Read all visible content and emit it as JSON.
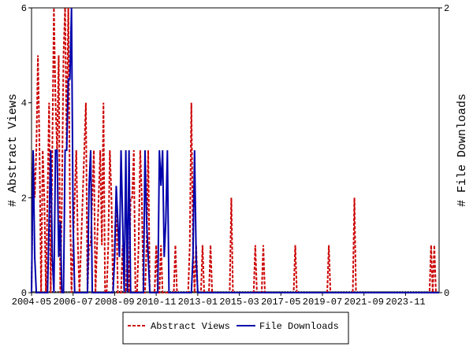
{
  "chart_data": {
    "type": "line",
    "y_label": "# Abstract Views",
    "y2_label": "# File Downloads",
    "categories": [
      "2004-05",
      null,
      null,
      null,
      null,
      null,
      null,
      null,
      null,
      null,
      null,
      null,
      null,
      null,
      null,
      null,
      null,
      null,
      null,
      null,
      null,
      null,
      null,
      null,
      null,
      null,
      "2006-07",
      null,
      null,
      null,
      null,
      null,
      null,
      null,
      null,
      null,
      null,
      null,
      null,
      null,
      null,
      null,
      null,
      null,
      null,
      null,
      null,
      null,
      null,
      null,
      null,
      null,
      "2008-09",
      null,
      null,
      null,
      null,
      null,
      null,
      null,
      null,
      null,
      null,
      null,
      null,
      null,
      null,
      null,
      null,
      null,
      null,
      null,
      null,
      null,
      null,
      null,
      null,
      null,
      "2010-11",
      null,
      null,
      null,
      null,
      null,
      null,
      null,
      null,
      null,
      null,
      null,
      null,
      null,
      null,
      null,
      null,
      null,
      null,
      null,
      null,
      null,
      null,
      null,
      null,
      null,
      "2013-01",
      null,
      null,
      null,
      null,
      null,
      null,
      null,
      null,
      null,
      null,
      null,
      null,
      null,
      null,
      null,
      null,
      null,
      null,
      null,
      null,
      null,
      null,
      null,
      null,
      null,
      "2015-03",
      null,
      null,
      null,
      null,
      null,
      null,
      null,
      null,
      null,
      null,
      null,
      null,
      null,
      null,
      null,
      null,
      null,
      null,
      null,
      null,
      null,
      null,
      null,
      null,
      null,
      "2017-05",
      null,
      null,
      null,
      null,
      null,
      null,
      null,
      null,
      null,
      null,
      null,
      null,
      null,
      null,
      null,
      null,
      null,
      null,
      null,
      null,
      null,
      null,
      null,
      null,
      null,
      "2019-07",
      null,
      null,
      null,
      null,
      null,
      null,
      null,
      null,
      null,
      null,
      null,
      null,
      null,
      null,
      null,
      null,
      null,
      null,
      null,
      null,
      null,
      null,
      null,
      null,
      null,
      "2021-09",
      null,
      null,
      null,
      null,
      null,
      null,
      null,
      null,
      null,
      null,
      null,
      null,
      null,
      null,
      null,
      null,
      null,
      null,
      null,
      null,
      null,
      null,
      null,
      null,
      null,
      "2023-11",
      null,
      null,
      null,
      null,
      null,
      null,
      null,
      null,
      null,
      null,
      null,
      null,
      null,
      null,
      null,
      null,
      null,
      null,
      null,
      null,
      null
    ],
    "series": [
      {
        "name": "Abstract Views",
        "color": "#cc0000",
        "dash": true,
        "values": [
          0,
          3,
          2,
          3,
          5,
          3,
          0,
          3,
          2,
          0,
          2,
          4,
          0,
          3,
          6,
          4,
          3,
          5,
          0,
          2,
          5,
          6,
          3,
          6,
          2,
          0,
          1,
          2,
          3,
          1,
          0,
          1,
          2,
          3,
          4,
          0,
          1,
          1,
          2,
          3,
          0,
          1,
          2,
          3,
          1,
          4,
          0,
          0,
          1,
          3,
          2,
          0,
          1,
          2,
          0,
          0,
          0,
          1,
          0,
          0,
          1,
          0,
          2,
          2,
          3,
          0,
          0,
          1,
          3,
          2,
          0,
          0,
          1,
          3,
          0,
          0,
          0,
          0,
          1,
          0,
          0,
          1,
          0,
          0,
          0,
          0,
          0,
          0,
          0,
          0,
          1,
          0,
          0,
          0,
          0,
          0,
          0,
          0,
          0,
          1,
          4,
          1,
          0,
          1,
          0,
          0,
          0,
          1,
          0,
          0,
          0,
          0,
          1,
          0,
          0,
          0,
          0,
          0,
          0,
          0,
          0,
          0,
          0,
          0,
          0,
          2,
          0,
          0,
          0,
          0,
          0,
          0,
          0,
          0,
          0,
          0,
          0,
          0,
          0,
          0,
          1,
          0,
          0,
          0,
          0,
          1,
          0,
          0,
          0,
          0,
          0,
          0,
          0,
          0,
          0,
          0,
          0,
          0,
          0,
          0,
          0,
          0,
          0,
          0,
          0,
          1,
          0,
          0,
          0,
          0,
          0,
          0,
          0,
          0,
          0,
          0,
          0,
          0,
          0,
          0,
          0,
          0,
          0,
          0,
          0,
          0,
          1,
          0,
          0,
          0,
          0,
          0,
          0,
          0,
          0,
          0,
          0,
          0,
          0,
          0,
          0,
          0,
          2,
          0,
          0,
          0,
          0,
          0,
          0,
          0,
          0,
          0,
          0,
          0,
          0,
          0,
          0,
          0,
          0,
          0,
          0,
          0,
          0,
          0,
          0,
          0,
          0,
          0,
          0,
          0,
          0,
          0,
          0,
          0,
          0,
          0,
          0,
          0,
          0,
          0,
          0,
          0,
          0,
          0,
          0,
          0,
          0,
          0,
          0,
          0,
          1,
          0,
          1,
          0,
          0,
          0
        ]
      },
      {
        "name": "File Downloads",
        "color": "#0000aa",
        "dash": false,
        "axis": "y2",
        "values": [
          0,
          1,
          0.25,
          0,
          0,
          0,
          0,
          0,
          0,
          0,
          0,
          0.5,
          1,
          0.25,
          0,
          1,
          1,
          0.25,
          0.5,
          0,
          0,
          1,
          1,
          1.5,
          1.5,
          2,
          0.5,
          0,
          0,
          0,
          0,
          0,
          0,
          0,
          0,
          0,
          0.75,
          1,
          0,
          0,
          0,
          0,
          0,
          0,
          0,
          0,
          0,
          0,
          0,
          0,
          0,
          0,
          0.25,
          0.75,
          0.5,
          0.25,
          1,
          0.5,
          0,
          1,
          0,
          1,
          0,
          0,
          0,
          0,
          0,
          0,
          0,
          0,
          0,
          1,
          0.5,
          0.25,
          0,
          0,
          0,
          0,
          0,
          0,
          1,
          0.75,
          1,
          0.25,
          0.5,
          1,
          0,
          0,
          0,
          0,
          0,
          0,
          0,
          0,
          0,
          0,
          0,
          0,
          0,
          0,
          0,
          0.25,
          1,
          0.25,
          0,
          0,
          0,
          0,
          0,
          0,
          0,
          0,
          0,
          0,
          0,
          0,
          0,
          0,
          0,
          0,
          0,
          0,
          0,
          0,
          0,
          0,
          0,
          0,
          0,
          0,
          0,
          0,
          0,
          0,
          0,
          0,
          0,
          0,
          0,
          0,
          0,
          0,
          0,
          0,
          0,
          0,
          0,
          0,
          0,
          0,
          0,
          0,
          0,
          0,
          0,
          0,
          0,
          0,
          0,
          0,
          0,
          0,
          0,
          0,
          0,
          0,
          0,
          0,
          0,
          0,
          0,
          0,
          0,
          0,
          0,
          0,
          0,
          0,
          0,
          0,
          0,
          0,
          0,
          0,
          0,
          0,
          0,
          0,
          0,
          0,
          0,
          0,
          0,
          0,
          0,
          0,
          0,
          0,
          0,
          0,
          0,
          0,
          0,
          0,
          0,
          0,
          0,
          0,
          0,
          0,
          0,
          0,
          0,
          0,
          0,
          0,
          0,
          0,
          0,
          0,
          0,
          0,
          0,
          0,
          0,
          0,
          0,
          0,
          0,
          0,
          0,
          0,
          0,
          0,
          0,
          0,
          0,
          0,
          0,
          0,
          0,
          0,
          0,
          0,
          0,
          0,
          0,
          0,
          0,
          0,
          0,
          0,
          0,
          0,
          0,
          0
        ]
      }
    ],
    "ylim": [
      0,
      6
    ],
    "yticks": [
      0,
      2,
      4,
      6
    ],
    "y2lim": [
      0,
      2
    ],
    "y2ticks": [
      0,
      2
    ],
    "legend": "bottom"
  }
}
